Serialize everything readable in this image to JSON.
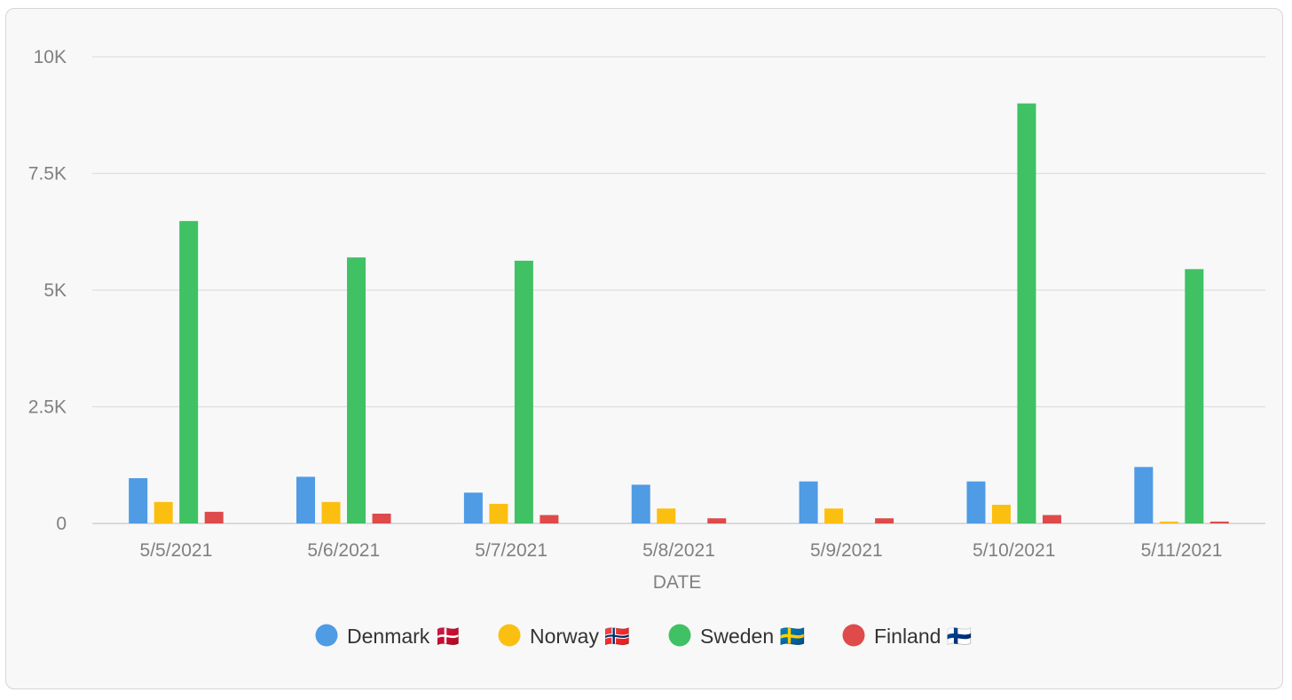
{
  "chart_data": {
    "type": "bar",
    "xlabel": "DATE",
    "ylabel": "",
    "ylim": [
      0,
      10000
    ],
    "yticks": [
      0,
      2500,
      5000,
      7500,
      10000
    ],
    "ytick_labels": [
      "0",
      "2.5K",
      "5K",
      "7.5K",
      "10K"
    ],
    "categories": [
      "5/5/2021",
      "5/6/2021",
      "5/7/2021",
      "5/8/2021",
      "5/9/2021",
      "5/10/2021",
      "5/11/2021"
    ],
    "grid": true,
    "legend_position": "bottom-center",
    "series": [
      {
        "name": "Denmark 🇩🇰",
        "color": "#4f9be4",
        "values": [
          970,
          1000,
          660,
          830,
          900,
          900,
          1210
        ]
      },
      {
        "name": "Norway 🇳🇴",
        "color": "#fbbf11",
        "values": [
          460,
          460,
          420,
          320,
          320,
          400,
          40
        ]
      },
      {
        "name": "Sweden 🇸🇪",
        "color": "#3fc164",
        "values": [
          6480,
          5700,
          5630,
          0,
          0,
          9000,
          5450
        ]
      },
      {
        "name": "Finland 🇫🇮",
        "color": "#df4a4a",
        "values": [
          250,
          210,
          180,
          110,
          110,
          180,
          40
        ]
      }
    ]
  }
}
